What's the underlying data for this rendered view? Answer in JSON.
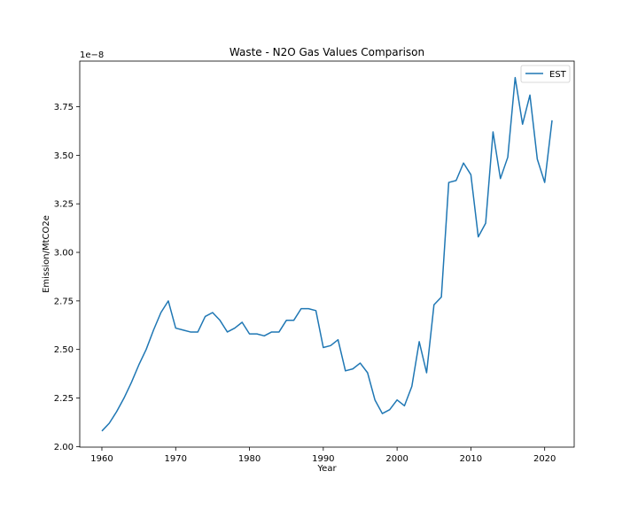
{
  "chart_data": {
    "type": "line",
    "title": "Waste - N2O Gas Values Comparison",
    "xlabel": "Year",
    "ylabel": "Emission/MtCO2e",
    "y_offset_label": "1e−8",
    "xlim": [
      1957,
      2024
    ],
    "ylim": [
      1.997,
      3.985
    ],
    "xticks": [
      1960,
      1970,
      1980,
      1990,
      2000,
      2010,
      2020
    ],
    "yticks": [
      2.0,
      2.25,
      2.5,
      2.75,
      3.0,
      3.25,
      3.5,
      3.75
    ],
    "ytick_labels": [
      "2.00",
      "2.25",
      "2.50",
      "2.75",
      "3.00",
      "3.25",
      "3.50",
      "3.75"
    ],
    "grid": false,
    "legend_position": "top-right",
    "colors": {
      "series": "#1f77b4"
    },
    "x": [
      1960,
      1961,
      1962,
      1963,
      1964,
      1965,
      1966,
      1967,
      1968,
      1969,
      1970,
      1971,
      1972,
      1973,
      1974,
      1975,
      1976,
      1977,
      1978,
      1979,
      1980,
      1981,
      1982,
      1983,
      1984,
      1985,
      1986,
      1987,
      1988,
      1989,
      1990,
      1991,
      1992,
      1993,
      1994,
      1995,
      1996,
      1997,
      1998,
      1999,
      2000,
      2001,
      2002,
      2003,
      2004,
      2005,
      2006,
      2007,
      2008,
      2009,
      2010,
      2011,
      2012,
      2013,
      2014,
      2015,
      2016,
      2017,
      2018,
      2019,
      2020,
      2021
    ],
    "series": [
      {
        "name": "EST",
        "values": [
          2.08,
          2.12,
          2.18,
          2.25,
          2.33,
          2.42,
          2.5,
          2.6,
          2.69,
          2.75,
          2.61,
          2.6,
          2.59,
          2.59,
          2.67,
          2.69,
          2.65,
          2.59,
          2.61,
          2.64,
          2.58,
          2.58,
          2.57,
          2.59,
          2.59,
          2.65,
          2.65,
          2.71,
          2.71,
          2.7,
          2.51,
          2.52,
          2.55,
          2.39,
          2.4,
          2.43,
          2.38,
          2.24,
          2.17,
          2.19,
          2.24,
          2.21,
          2.31,
          2.54,
          2.38,
          2.73,
          2.77,
          3.36,
          3.37,
          3.46,
          3.4,
          3.08,
          3.15,
          3.62,
          3.38,
          3.49,
          3.9,
          3.66,
          3.81,
          3.48,
          3.36,
          3.68
        ]
      }
    ]
  }
}
